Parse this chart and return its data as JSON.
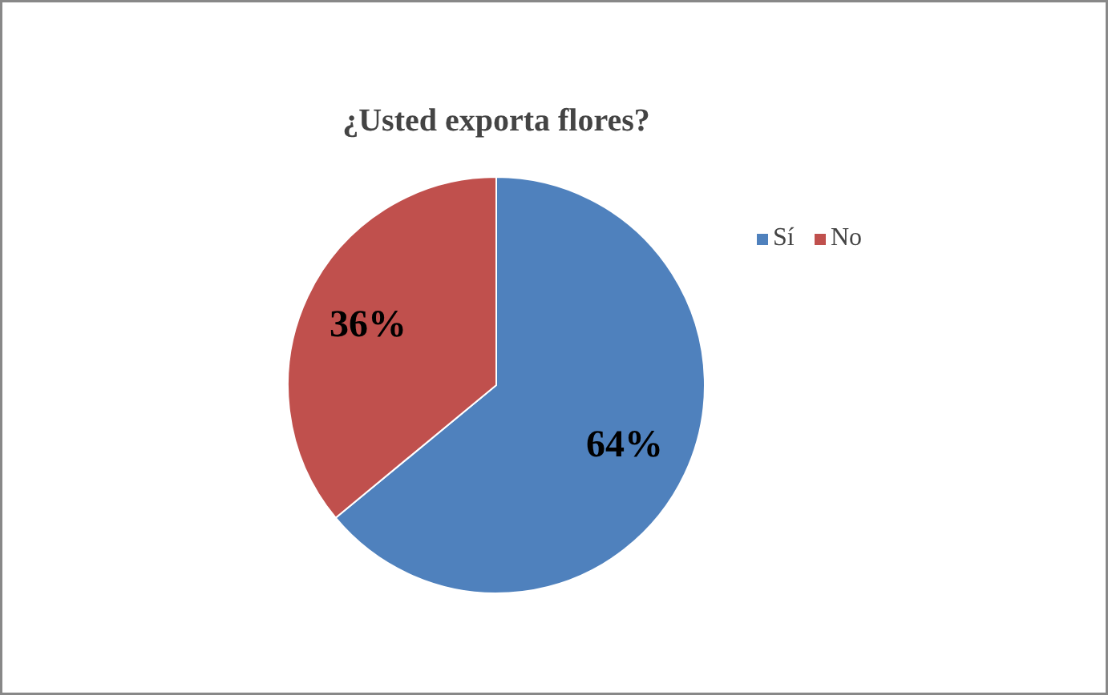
{
  "chart_data": {
    "type": "pie",
    "title": "¿Usted exporta flores?",
    "categories": [
      "Sí",
      "No"
    ],
    "values": [
      64,
      36
    ],
    "colors": [
      "#4f81bd",
      "#c0504d"
    ],
    "value_labels": [
      "64%",
      "36%"
    ],
    "legend": "right"
  }
}
